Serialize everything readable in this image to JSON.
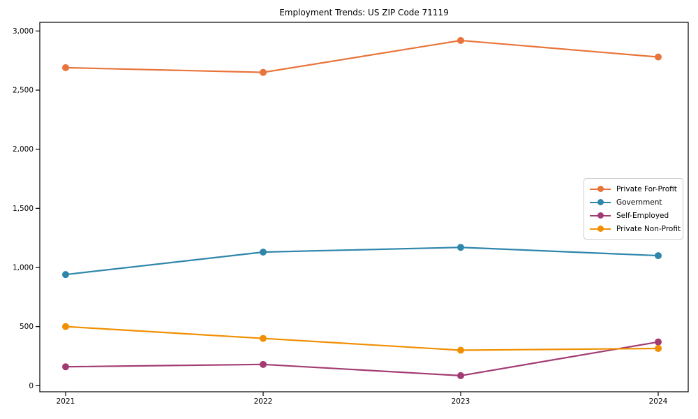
{
  "chart_data": {
    "type": "line",
    "title": "Employment Trends: US ZIP Code 71119",
    "x": [
      "2021",
      "2022",
      "2023",
      "2024"
    ],
    "xlabel": "",
    "ylabel": "",
    "ylim": [
      0,
      3000
    ],
    "ytick_interval": 500,
    "ytick_labels": [
      "0",
      "500",
      "1,000",
      "1,500",
      "2,000",
      "2,500",
      "3,000"
    ],
    "grid": false,
    "legend_position": "right-inside",
    "series": [
      {
        "name": "Private For-Profit",
        "color": "#e8743b",
        "values": [
          2690,
          2650,
          2920,
          2780
        ]
      },
      {
        "name": "Government",
        "color": "#2e86ab",
        "values": [
          940,
          1130,
          1170,
          1100
        ]
      },
      {
        "name": "Self-Employed",
        "color": "#a23b72",
        "values": [
          160,
          180,
          85,
          370
        ]
      },
      {
        "name": "Private Non-Profit",
        "color": "#f18f01",
        "values": [
          500,
          400,
          300,
          315
        ]
      }
    ],
    "axis_color": "#000000",
    "background_color": "#ffffff"
  }
}
